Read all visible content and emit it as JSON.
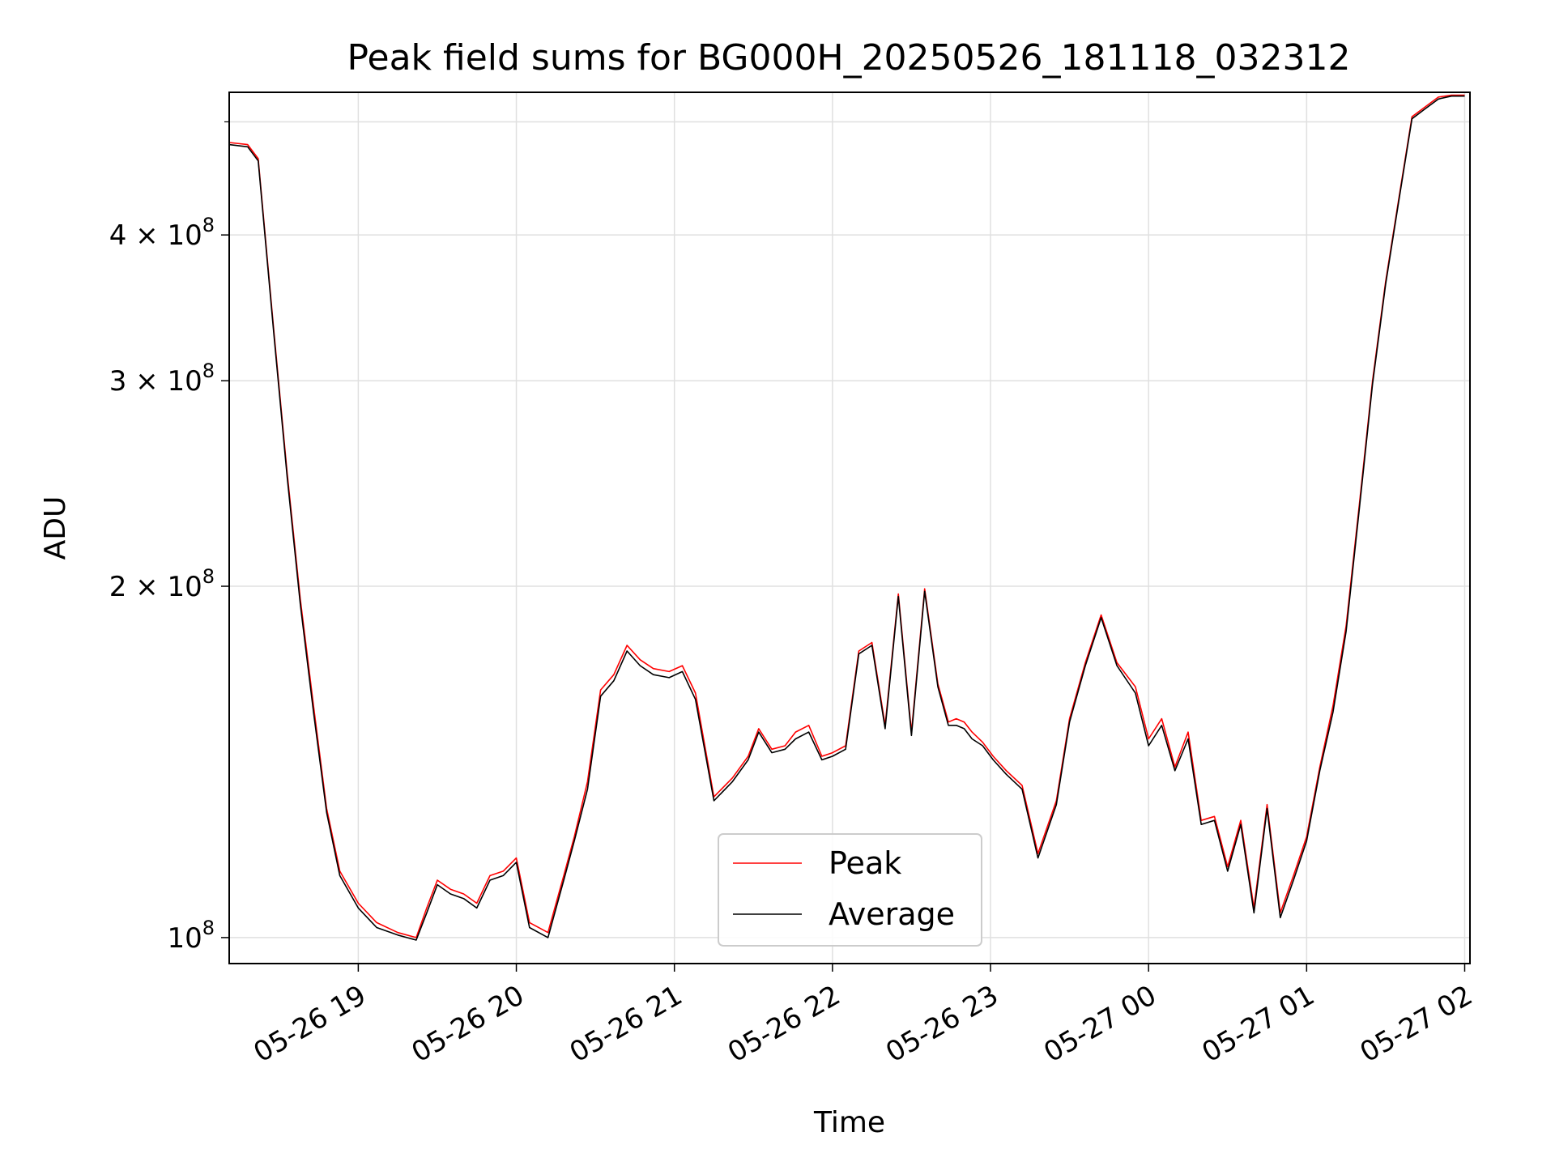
{
  "chart_data": {
    "type": "line",
    "title": "Peak field sums for BG000H_20250526_181118_032312",
    "xlabel": "Time",
    "ylabel": "ADU",
    "yscale": "log",
    "grid": true,
    "legend_position": "lower center",
    "xlim": [
      "05-26 18:11",
      "05-27 02:02"
    ],
    "ylim": [
      95000000,
      530000000
    ],
    "x_ticks": [
      {
        "t": "05-26 19:00",
        "label": "05-26 19"
      },
      {
        "t": "05-26 20:00",
        "label": "05-26 20"
      },
      {
        "t": "05-26 21:00",
        "label": "05-26 21"
      },
      {
        "t": "05-26 22:00",
        "label": "05-26 22"
      },
      {
        "t": "05-26 23:00",
        "label": "05-26 23"
      },
      {
        "t": "05-27 00:00",
        "label": "05-27 00"
      },
      {
        "t": "05-27 01:00",
        "label": "05-27 01"
      },
      {
        "t": "05-27 02:00",
        "label": "05-27 02"
      }
    ],
    "y_ticks": [
      {
        "value": 100000000,
        "base": "10",
        "exp": "8"
      },
      {
        "value": 200000000,
        "base": "2 × 10",
        "exp": "8"
      },
      {
        "value": 300000000,
        "base": "3 × 10",
        "exp": "8"
      },
      {
        "value": 400000000,
        "base": "4 × 10",
        "exp": "8"
      }
    ],
    "x": [
      "05-26 18:11",
      "05-26 18:18",
      "05-26 18:22",
      "05-26 18:28",
      "05-26 18:33",
      "05-26 18:38",
      "05-26 18:43",
      "05-26 18:48",
      "05-26 18:53",
      "05-26 19:00",
      "05-26 19:07",
      "05-26 19:15",
      "05-26 19:22",
      "05-26 19:26",
      "05-26 19:30",
      "05-26 19:35",
      "05-26 19:40",
      "05-26 19:45",
      "05-26 19:50",
      "05-26 19:55",
      "05-26 20:00",
      "05-26 20:05",
      "05-26 20:12",
      "05-26 20:18",
      "05-26 20:22",
      "05-26 20:27",
      "05-26 20:32",
      "05-26 20:37",
      "05-26 20:42",
      "05-26 20:47",
      "05-26 20:52",
      "05-26 20:58",
      "05-26 21:03",
      "05-26 21:08",
      "05-26 21:15",
      "05-26 21:22",
      "05-26 21:28",
      "05-26 21:32",
      "05-26 21:37",
      "05-26 21:42",
      "05-26 21:46",
      "05-26 21:51",
      "05-26 21:56",
      "05-26 22:00",
      "05-26 22:05",
      "05-26 22:10",
      "05-26 22:15",
      "05-26 22:20",
      "05-26 22:25",
      "05-26 22:30",
      "05-26 22:35",
      "05-26 22:40",
      "05-26 22:44",
      "05-26 22:47",
      "05-26 22:50",
      "05-26 22:53",
      "05-26 22:57",
      "05-26 23:01",
      "05-26 23:06",
      "05-26 23:12",
      "05-26 23:18",
      "05-26 23:25",
      "05-26 23:30",
      "05-26 23:36",
      "05-26 23:42",
      "05-26 23:48",
      "05-26 23:55",
      "05-27 00:00",
      "05-27 00:05",
      "05-27 00:10",
      "05-27 00:15",
      "05-27 00:20",
      "05-27 00:25",
      "05-27 00:30",
      "05-27 00:35",
      "05-27 00:40",
      "05-27 00:45",
      "05-27 00:50",
      "05-27 00:55",
      "05-27 01:00",
      "05-27 01:05",
      "05-27 01:10",
      "05-27 01:15",
      "05-27 01:20",
      "05-27 01:25",
      "05-27 01:30",
      "05-27 01:35",
      "05-27 01:40",
      "05-27 01:45",
      "05-27 01:50",
      "05-27 01:55",
      "05-27 02:00"
    ],
    "series": [
      {
        "name": "Peak",
        "color": "#ff0000",
        "values": [
          480000000,
          478000000,
          465000000,
          330000000,
          250000000,
          195000000,
          158000000,
          129000000,
          114000000,
          107000000,
          103000000,
          101000000,
          100000000,
          106000000,
          112000000,
          110000000,
          109000000,
          107000000,
          113000000,
          114000000,
          117000000,
          103000000,
          101000000,
          113000000,
          122000000,
          136000000,
          163000000,
          168000000,
          178000000,
          173000000,
          170000000,
          169000000,
          171000000,
          162000000,
          132000000,
          137000000,
          143000000,
          151000000,
          145000000,
          146000000,
          150000000,
          152000000,
          143000000,
          144000000,
          146000000,
          176000000,
          179000000,
          152000000,
          197000000,
          150000000,
          199000000,
          165000000,
          153000000,
          154000000,
          153000000,
          150000000,
          147000000,
          143000000,
          139000000,
          135000000,
          118000000,
          131000000,
          154000000,
          172000000,
          189000000,
          172000000,
          164000000,
          148000000,
          154000000,
          140000000,
          150000000,
          126000000,
          127000000,
          115000000,
          126000000,
          106000000,
          130000000,
          105000000,
          113000000,
          122000000,
          140000000,
          158000000,
          185000000,
          235000000,
          300000000,
          365000000,
          430000000,
          505000000,
          515000000,
          525000000,
          527000000,
          527000000
        ]
      },
      {
        "name": "Average",
        "color": "#000000",
        "values": [
          478000000,
          476000000,
          463000000,
          328000000,
          248000000,
          193000000,
          156000000,
          128000000,
          113000000,
          106000000,
          102000000,
          100500000,
          99500000,
          105000000,
          111000000,
          109000000,
          108000000,
          106000000,
          112000000,
          113000000,
          116000000,
          102000000,
          100000000,
          112000000,
          121000000,
          134000000,
          161000000,
          166000000,
          176000000,
          171000000,
          168000000,
          167000000,
          169000000,
          160000000,
          131000000,
          136000000,
          142000000,
          150000000,
          144000000,
          145000000,
          148000000,
          150000000,
          142000000,
          143000000,
          145000000,
          175000000,
          178000000,
          151000000,
          196000000,
          149000000,
          198000000,
          164000000,
          152000000,
          152000000,
          151000000,
          148000000,
          146000000,
          142000000,
          138000000,
          134000000,
          117000000,
          130000000,
          153000000,
          171000000,
          188000000,
          171000000,
          162000000,
          146000000,
          152000000,
          139000000,
          148000000,
          125000000,
          126000000,
          114000000,
          125000000,
          105000000,
          129000000,
          104000000,
          112000000,
          121000000,
          139000000,
          156000000,
          183000000,
          233000000,
          298000000,
          363000000,
          428000000,
          503000000,
          513000000,
          523000000,
          526000000,
          526000000
        ]
      }
    ]
  }
}
